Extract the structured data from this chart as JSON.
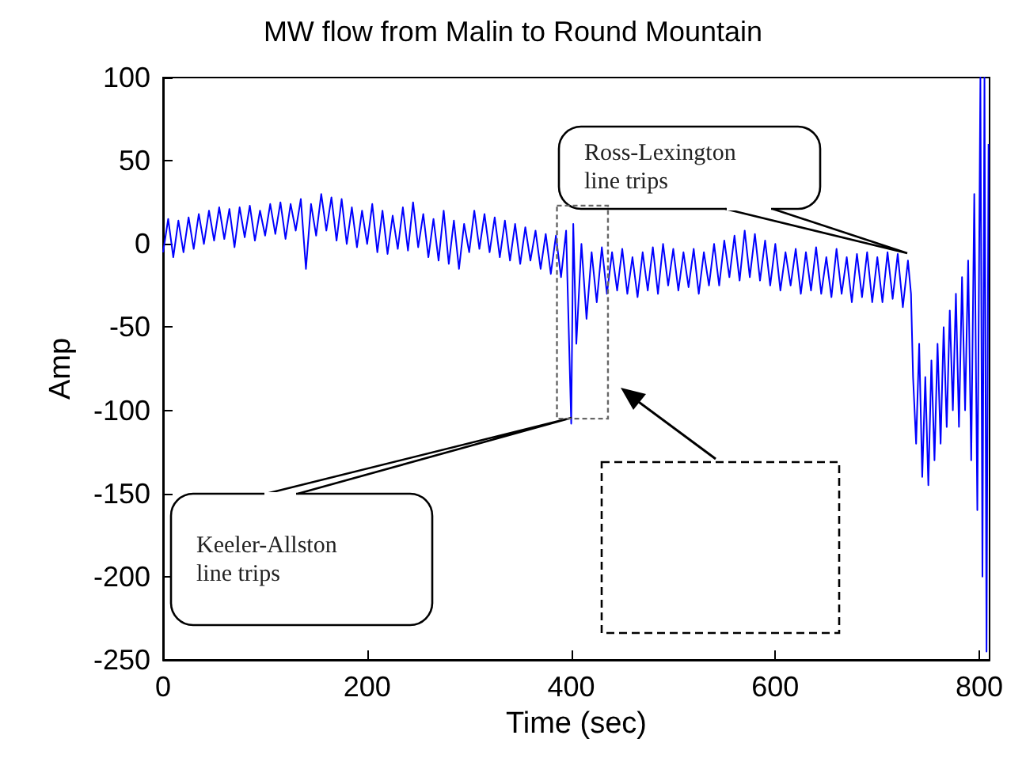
{
  "chart_data": {
    "type": "line",
    "title": "MW flow from Malin to Round Mountain",
    "xlabel": "Time (sec)",
    "ylabel": "Amp",
    "x": [
      0,
      5,
      10,
      15,
      20,
      25,
      30,
      35,
      40,
      45,
      50,
      55,
      60,
      65,
      70,
      75,
      80,
      85,
      90,
      95,
      100,
      105,
      110,
      115,
      120,
      125,
      130,
      135,
      140,
      145,
      150,
      155,
      160,
      165,
      170,
      175,
      180,
      185,
      190,
      195,
      200,
      205,
      210,
      215,
      220,
      225,
      230,
      235,
      240,
      245,
      250,
      255,
      260,
      265,
      270,
      275,
      280,
      285,
      290,
      295,
      300,
      305,
      310,
      315,
      320,
      325,
      330,
      335,
      340,
      345,
      350,
      355,
      360,
      365,
      370,
      375,
      380,
      385,
      390,
      395,
      400,
      402,
      405,
      410,
      415,
      420,
      425,
      430,
      435,
      440,
      445,
      450,
      455,
      460,
      465,
      470,
      475,
      480,
      485,
      490,
      495,
      500,
      505,
      510,
      515,
      520,
      525,
      530,
      535,
      540,
      545,
      550,
      555,
      560,
      565,
      570,
      575,
      580,
      585,
      590,
      595,
      600,
      605,
      610,
      615,
      620,
      625,
      630,
      635,
      640,
      645,
      650,
      655,
      660,
      665,
      670,
      675,
      680,
      685,
      690,
      695,
      700,
      705,
      710,
      715,
      720,
      725,
      730,
      733,
      735,
      738,
      741,
      744,
      747,
      750,
      753,
      756,
      759,
      762,
      765,
      768,
      771,
      774,
      777,
      780,
      783,
      786,
      789,
      792,
      795,
      798,
      801,
      803,
      805,
      807,
      809
    ],
    "values": [
      -5,
      15,
      -8,
      14,
      -5,
      16,
      -3,
      18,
      0,
      20,
      2,
      22,
      3,
      21,
      -2,
      22,
      4,
      23,
      2,
      20,
      5,
      24,
      6,
      25,
      3,
      24,
      8,
      27,
      -15,
      24,
      5,
      30,
      8,
      28,
      2,
      27,
      0,
      22,
      -2,
      20,
      0,
      24,
      -5,
      20,
      -6,
      17,
      -3,
      22,
      -4,
      25,
      -2,
      18,
      -8,
      15,
      -10,
      20,
      -12,
      14,
      -15,
      12,
      -5,
      20,
      -3,
      18,
      -5,
      16,
      -8,
      14,
      -10,
      12,
      -12,
      10,
      -10,
      8,
      -15,
      6,
      -18,
      5,
      -20,
      8,
      -108,
      12,
      -60,
      0,
      -45,
      -5,
      -35,
      -2,
      -30,
      -5,
      -28,
      -3,
      -30,
      -8,
      -32,
      -5,
      -28,
      -2,
      -30,
      0,
      -25,
      -3,
      -28,
      -5,
      -26,
      -3,
      -30,
      -5,
      -25,
      0,
      -25,
      2,
      -20,
      5,
      -22,
      8,
      -20,
      6,
      -22,
      2,
      -25,
      0,
      -28,
      -5,
      -25,
      -3,
      -30,
      -5,
      -28,
      -2,
      -30,
      -8,
      -32,
      -3,
      -30,
      -8,
      -35,
      -6,
      -32,
      -5,
      -35,
      -8,
      -35,
      -5,
      -33,
      -6,
      -38,
      -10,
      -30,
      -80,
      -120,
      -60,
      -140,
      -80,
      -145,
      -70,
      -130,
      -60,
      -120,
      -50,
      -110,
      -40,
      -100,
      -30,
      -110,
      -20,
      -100,
      -10,
      -130,
      30,
      -160,
      100,
      -200,
      100,
      -245,
      60
    ],
    "color": "#0000ff",
    "marker": "none",
    "xlim": [
      0,
      810
    ],
    "ylim": [
      -250,
      100
    ],
    "xticks": [
      0,
      200,
      400,
      600,
      800
    ],
    "yticks": [
      -250,
      -200,
      -150,
      -100,
      -50,
      0,
      50,
      100
    ],
    "grid": false,
    "annotations": [
      "Keeler-Allston line trips",
      "Ross-Lexington line trips"
    ]
  }
}
